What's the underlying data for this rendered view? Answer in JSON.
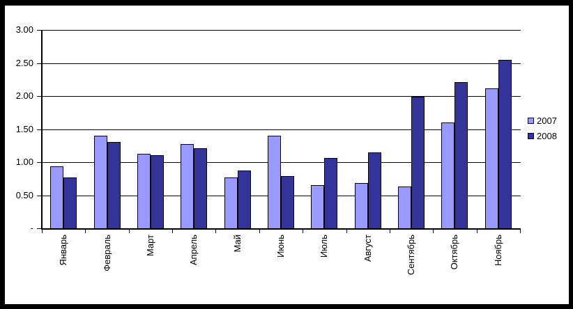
{
  "chart_data": {
    "type": "bar",
    "title": "",
    "xlabel": "",
    "ylabel": "",
    "categories": [
      "Январь",
      "Февраль",
      "Март",
      "Апрель",
      "Май",
      "Июнь",
      "Июль",
      "Август",
      "Сентябрь",
      "Октябрь",
      "Ноябрь"
    ],
    "series": [
      {
        "name": "2007",
        "color": "#9999FF",
        "values": [
          0.94,
          1.4,
          1.13,
          1.27,
          0.77,
          1.4,
          0.65,
          0.68,
          0.63,
          1.6,
          2.12
        ]
      },
      {
        "name": "2008",
        "color": "#333399",
        "values": [
          0.77,
          1.31,
          1.1,
          1.21,
          0.87,
          0.79,
          1.06,
          1.15,
          1.99,
          2.21,
          2.55
        ]
      }
    ],
    "ylim": [
      0,
      3
    ],
    "y_ticks": [
      {
        "value": 3.0,
        "label": "3.00"
      },
      {
        "value": 2.5,
        "label": "2.50"
      },
      {
        "value": 2.0,
        "label": "2.00"
      },
      {
        "value": 1.5,
        "label": "1.50"
      },
      {
        "value": 1.0,
        "label": "1.00"
      },
      {
        "value": 0.5,
        "label": "0.50"
      },
      {
        "value": 0.0,
        "label": "-"
      }
    ],
    "grid": "horizontal",
    "legend_position": "right",
    "colors": {
      "frame": "#000000",
      "plot_background": "#FFFFFF",
      "axis": "#000000",
      "gridline": "#000000",
      "bar_border": "#000000",
      "text": "#000000"
    }
  }
}
